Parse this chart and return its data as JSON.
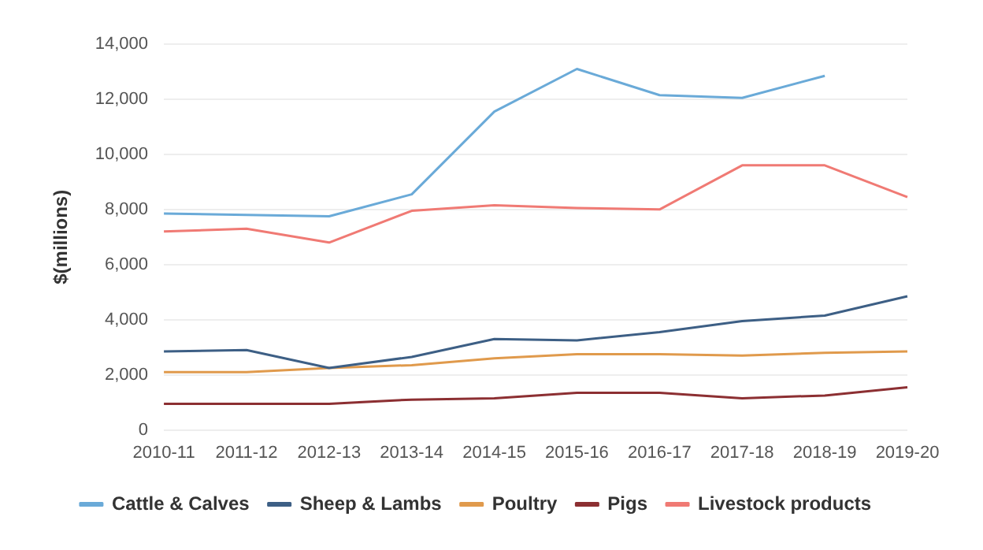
{
  "chart_data": {
    "type": "line",
    "ylabel": "$(millions)",
    "categories": [
      "2010-11",
      "2011-12",
      "2012-13",
      "2013-14",
      "2014-15",
      "2015-16",
      "2016-17",
      "2017-18",
      "2018-19",
      "2019-20"
    ],
    "series": [
      {
        "name": "Cattle & Calves",
        "color": "#6aaad8",
        "values": [
          7850,
          7800,
          7750,
          8550,
          11550,
          13100,
          12150,
          12050,
          12850,
          null
        ]
      },
      {
        "name": "Sheep & Lambs",
        "color": "#3d5f85",
        "values": [
          2850,
          2900,
          2250,
          2650,
          3300,
          3250,
          3550,
          3950,
          4150,
          4850
        ]
      },
      {
        "name": "Poultry",
        "color": "#e09a4c",
        "values": [
          2100,
          2100,
          2250,
          2350,
          2600,
          2750,
          2750,
          2700,
          2800,
          2850
        ]
      },
      {
        "name": "Pigs",
        "color": "#8c2f32",
        "values": [
          950,
          950,
          950,
          1100,
          1150,
          1350,
          1350,
          1150,
          1250,
          1550
        ]
      },
      {
        "name": "Livestock products",
        "color": "#f07a74",
        "values": [
          7200,
          7300,
          6800,
          7950,
          8150,
          8050,
          8000,
          9600,
          9600,
          8450
        ]
      }
    ],
    "ylim": [
      0,
      14000
    ],
    "yticks": [
      {
        "value": 0,
        "label": "0"
      },
      {
        "value": 2000,
        "label": "2,000"
      },
      {
        "value": 4000,
        "label": "4,000"
      },
      {
        "value": 6000,
        "label": "6,000"
      },
      {
        "value": 8000,
        "label": "8,000"
      },
      {
        "value": 10000,
        "label": "10,000"
      },
      {
        "value": 12000,
        "label": "12,000"
      },
      {
        "value": 14000,
        "label": "14,000"
      }
    ],
    "grid": "y",
    "legend": "bottom",
    "marker": "none",
    "line_style": "solid"
  }
}
